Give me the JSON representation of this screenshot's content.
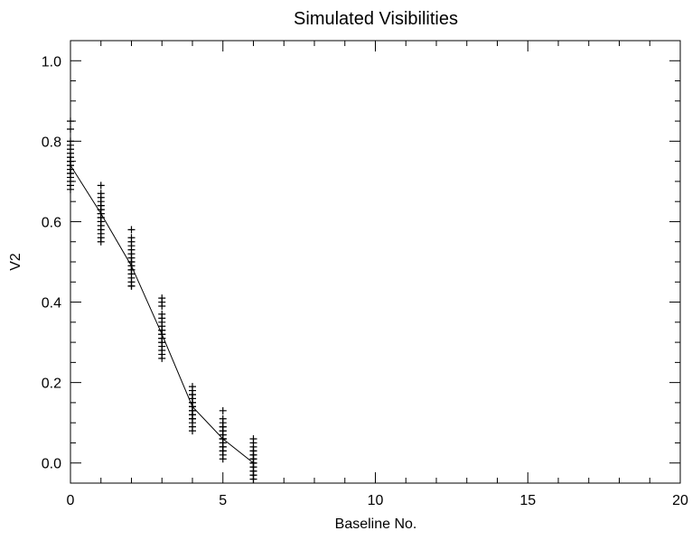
{
  "chart_data": {
    "type": "scatter",
    "title": "Simulated Visibilities",
    "xlabel": "Baseline No.",
    "ylabel": "V2",
    "xlim": [
      0,
      20
    ],
    "ylim": [
      -0.05,
      1.05
    ],
    "xticks": [
      0,
      5,
      10,
      15,
      20
    ],
    "xtick_labels": [
      "0",
      "5",
      "10",
      "15",
      "20"
    ],
    "yticks": [
      0.0,
      0.2,
      0.4,
      0.6,
      0.8,
      1.0
    ],
    "ytick_labels": [
      "0.0",
      "0.2",
      "0.4",
      "0.6",
      "0.8",
      "1.0"
    ],
    "grid": false,
    "marker": "+",
    "color": "#000000",
    "series": [
      {
        "type": "line",
        "x": [
          0,
          1,
          2,
          3,
          4,
          5,
          6
        ],
        "y": [
          0.74,
          0.62,
          0.49,
          0.32,
          0.14,
          0.06,
          0.0
        ]
      },
      {
        "type": "scatter",
        "x": [
          0,
          0,
          0,
          0,
          0,
          0,
          0,
          0,
          0,
          0,
          0,
          0,
          0,
          0,
          0,
          0,
          0,
          0,
          0,
          0,
          1,
          1,
          1,
          1,
          1,
          1,
          1,
          1,
          1,
          1,
          1,
          1,
          1,
          1,
          1,
          1,
          1,
          1,
          1,
          1,
          2,
          2,
          2,
          2,
          2,
          2,
          2,
          2,
          2,
          2,
          2,
          2,
          2,
          2,
          2,
          2,
          2,
          2,
          2,
          2,
          3,
          3,
          3,
          3,
          3,
          3,
          3,
          3,
          3,
          3,
          3,
          3,
          3,
          3,
          3,
          3,
          3,
          3,
          3,
          3,
          4,
          4,
          4,
          4,
          4,
          4,
          4,
          4,
          4,
          4,
          4,
          4,
          4,
          4,
          4,
          4,
          4,
          4,
          4,
          4,
          5,
          5,
          5,
          5,
          5,
          5,
          5,
          5,
          5,
          5,
          5,
          5,
          5,
          5,
          5,
          5,
          5,
          5,
          5,
          5,
          6,
          6,
          6,
          6,
          6,
          6,
          6,
          6,
          6,
          6,
          6,
          6,
          6,
          6,
          6,
          6,
          6,
          6,
          6,
          6
        ],
        "y": [
          0.85,
          0.83,
          0.8,
          0.79,
          0.78,
          0.77,
          0.76,
          0.76,
          0.75,
          0.75,
          0.74,
          0.74,
          0.73,
          0.73,
          0.72,
          0.71,
          0.7,
          0.69,
          0.68,
          0.72,
          0.69,
          0.67,
          0.66,
          0.65,
          0.64,
          0.64,
          0.63,
          0.63,
          0.62,
          0.62,
          0.61,
          0.61,
          0.6,
          0.6,
          0.59,
          0.58,
          0.57,
          0.56,
          0.55,
          0.62,
          0.58,
          0.56,
          0.55,
          0.54,
          0.53,
          0.52,
          0.51,
          0.51,
          0.5,
          0.5,
          0.49,
          0.49,
          0.48,
          0.48,
          0.47,
          0.46,
          0.45,
          0.44,
          0.44,
          0.49,
          0.41,
          0.4,
          0.39,
          0.37,
          0.36,
          0.35,
          0.34,
          0.33,
          0.33,
          0.32,
          0.32,
          0.31,
          0.31,
          0.3,
          0.3,
          0.29,
          0.28,
          0.27,
          0.26,
          0.32,
          0.19,
          0.18,
          0.17,
          0.17,
          0.16,
          0.16,
          0.15,
          0.15,
          0.14,
          0.14,
          0.13,
          0.13,
          0.12,
          0.12,
          0.11,
          0.11,
          0.1,
          0.09,
          0.08,
          0.14,
          0.13,
          0.11,
          0.1,
          0.09,
          0.09,
          0.08,
          0.08,
          0.07,
          0.07,
          0.06,
          0.06,
          0.05,
          0.05,
          0.04,
          0.04,
          0.03,
          0.03,
          0.02,
          0.01,
          0.06,
          0.06,
          0.05,
          0.04,
          0.03,
          0.03,
          0.02,
          0.02,
          0.01,
          0.01,
          0.0,
          0.0,
          -0.01,
          -0.01,
          -0.02,
          -0.02,
          -0.03,
          -0.03,
          -0.04,
          -0.04,
          0.0
        ]
      }
    ]
  }
}
